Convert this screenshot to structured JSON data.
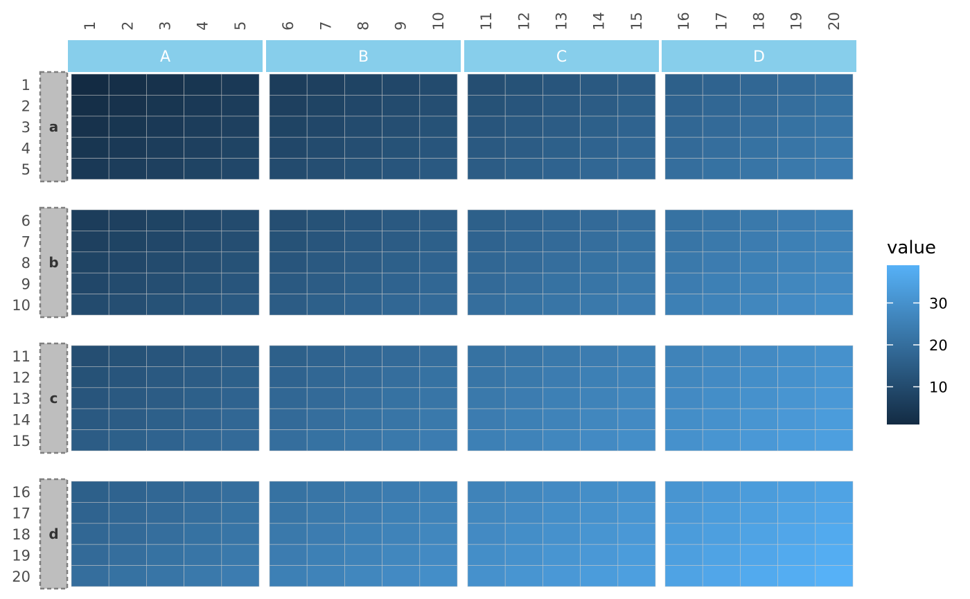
{
  "chart_data": {
    "type": "heatmap",
    "facet_rows": [
      "a",
      "b",
      "c",
      "d"
    ],
    "facet_cols": [
      "A",
      "B",
      "C",
      "D"
    ],
    "x": [
      "1",
      "2",
      "3",
      "4",
      "5",
      "6",
      "7",
      "8",
      "9",
      "10",
      "11",
      "12",
      "13",
      "14",
      "15",
      "16",
      "17",
      "18",
      "19",
      "20"
    ],
    "y": [
      "1",
      "2",
      "3",
      "4",
      "5",
      "6",
      "7",
      "8",
      "9",
      "10",
      "11",
      "12",
      "13",
      "14",
      "15",
      "16",
      "17",
      "18",
      "19",
      "20"
    ],
    "value_rule": "value = (x + y) - 1",
    "value_range": [
      1,
      39
    ],
    "legend": {
      "title": "value",
      "breaks": [
        10,
        20,
        30
      ],
      "labels": [
        "10",
        "20",
        "30"
      ],
      "position": "right",
      "low_color": "#132b43",
      "high_color": "#56b1f7"
    },
    "colors": {
      "top_strip_fill": "#87ceeb",
      "left_strip_fill": "#bebebe",
      "left_strip_border": "#7f7f7f",
      "tile_border": "#c8c8c8"
    }
  }
}
